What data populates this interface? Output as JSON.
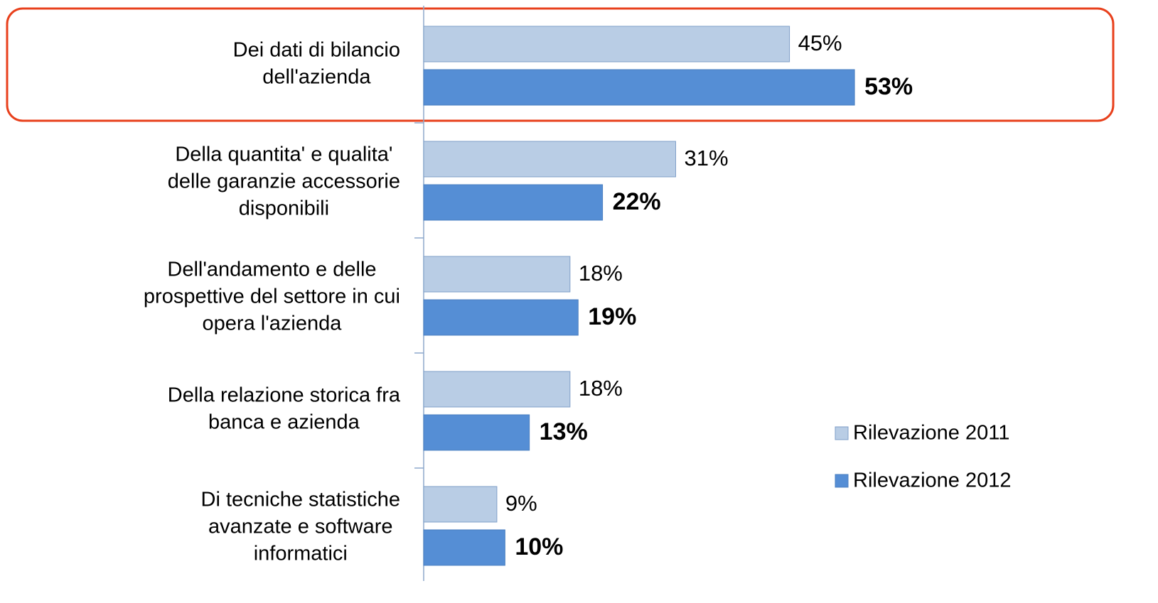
{
  "chart_data": {
    "type": "bar",
    "orientation": "horizontal",
    "categories": [
      "Dei dati di bilancio\ndell'azienda",
      "Della quantita' e qualita'\ndelle garanzie accessorie\ndisponibili",
      "Dell'andamento e delle\nprospettive del settore in cui\nopera l'azienda",
      "Della relazione storica fra\nbanca e azienda",
      "Di tecniche statistiche\navanzate e software\ninformatici"
    ],
    "series": [
      {
        "name": "Rilevazione 2011",
        "color": "#b9cde5",
        "values": [
          45,
          31,
          18,
          18,
          9
        ],
        "value_labels": [
          "45%",
          "31%",
          "18%",
          "18%",
          "9%"
        ]
      },
      {
        "name": "Rilevazione 2012",
        "color": "#558ed5",
        "values": [
          53,
          22,
          19,
          13,
          10
        ],
        "value_labels": [
          "53%",
          "22%",
          "19%",
          "13%",
          "10%"
        ]
      }
    ],
    "xlim": [
      0,
      85
    ],
    "legend": "right"
  }
}
